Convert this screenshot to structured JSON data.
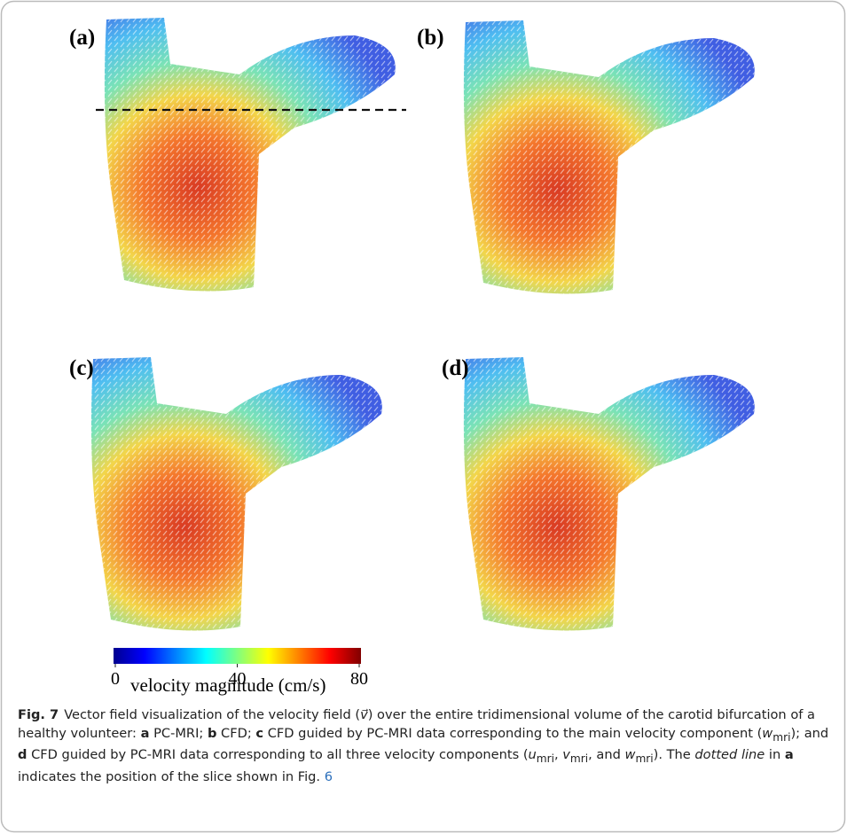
{
  "panels": [
    {
      "label": "(a)"
    },
    {
      "label": "(b)"
    },
    {
      "label": "(c)"
    },
    {
      "label": "(d)"
    }
  ],
  "colorbar": {
    "lim": [
      0,
      80
    ],
    "ticks": [
      0,
      40,
      80
    ],
    "label": "velocity magnitude (cm/s)"
  },
  "caption": {
    "segments": [
      "Fig. 7",
      "Vector field visualization of the velocity field (",
      "v⃗",
      ") over the entire tridimensional volume of the carotid bifurcation of a healthy volunteer: ",
      "a",
      " PC-MRI; ",
      "b",
      " CFD; ",
      "c",
      " CFD guided by PC-MRI data corresponding to the main velocity component (",
      "w",
      "mri",
      "); and ",
      "d",
      " CFD guided by PC-MRI data corresponding to all three velocity components (",
      "u",
      "mri",
      ", ",
      "v",
      "mri",
      ", and ",
      "w",
      "mri",
      "). The ",
      "dotted line",
      " in ",
      "a",
      " indicates the position of the slice shown in Fig. ",
      "6"
    ]
  }
}
